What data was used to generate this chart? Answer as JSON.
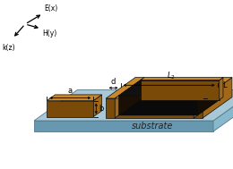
{
  "bg_color": "#ffffff",
  "sub_top_color": "#a8c8d8",
  "sub_front_color": "#6898b0",
  "sub_right_color": "#88b8cc",
  "sub_edge_color": "#557888",
  "gold_top_color": "#c8882a",
  "gold_front_color": "#7a4a08",
  "gold_right_color": "#a06818",
  "black_color": "#111111",
  "text_color": "#222222",
  "substrate_label": "substrate",
  "axis_E": "E(x)",
  "axis_H": "H(y)",
  "axis_k": "k(z)"
}
